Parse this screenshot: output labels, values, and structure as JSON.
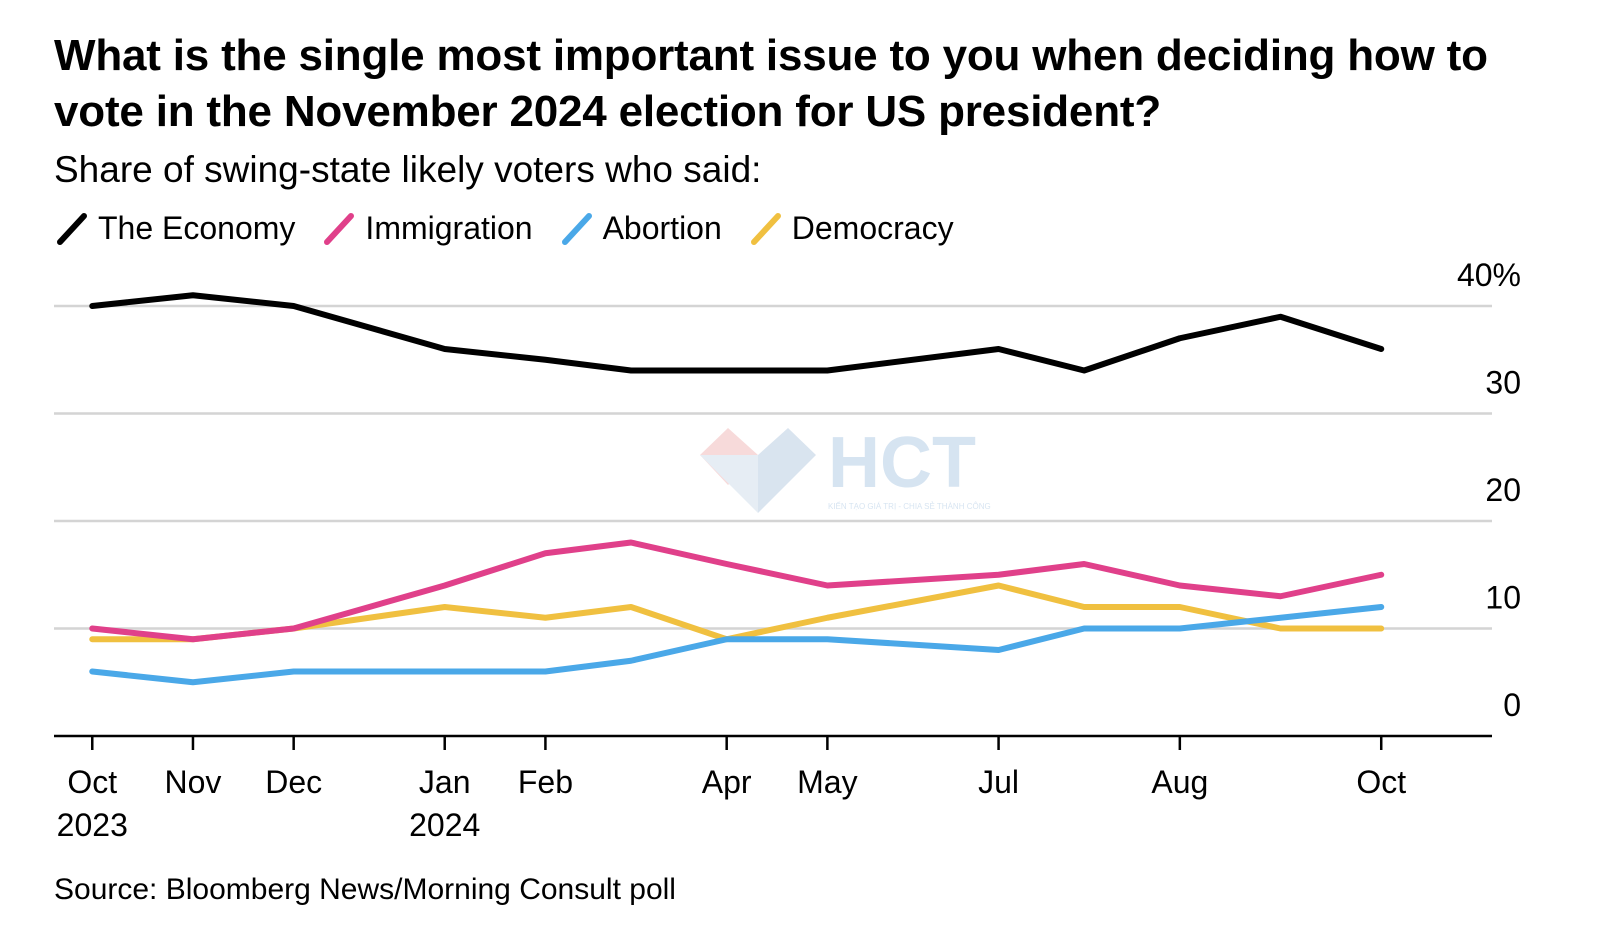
{
  "chart_data": {
    "type": "line",
    "title": "What is the single most important issue to you when deciding how to vote in the November 2024 election for US president?",
    "subtitle": "Share of swing-state likely voters who said:",
    "source": "Source: Bloomberg News/Morning Consult poll",
    "x_index": [
      0,
      1,
      2,
      3.5,
      4.5,
      5.35,
      6.3,
      7.3,
      9,
      9.85,
      10.8,
      11.8,
      12.8
    ],
    "x_ticks": [
      {
        "pos": 0,
        "label": "Oct",
        "sublabel": "2023"
      },
      {
        "pos": 1,
        "label": "Nov",
        "sublabel": ""
      },
      {
        "pos": 2,
        "label": "Dec",
        "sublabel": ""
      },
      {
        "pos": 3.5,
        "label": "Jan",
        "sublabel": "2024"
      },
      {
        "pos": 4.5,
        "label": "Feb",
        "sublabel": ""
      },
      {
        "pos": 6.3,
        "label": "Apr",
        "sublabel": ""
      },
      {
        "pos": 7.3,
        "label": "May",
        "sublabel": ""
      },
      {
        "pos": 9,
        "label": "Jul",
        "sublabel": ""
      },
      {
        "pos": 10.8,
        "label": "Aug",
        "sublabel": ""
      },
      {
        "pos": 12.8,
        "label": "Oct",
        "sublabel": ""
      }
    ],
    "x_range": [
      -0.38,
      13.9
    ],
    "ylim": [
      0,
      40
    ],
    "y_ticks": [
      {
        "value": 0,
        "label": "0"
      },
      {
        "value": 10,
        "label": "10"
      },
      {
        "value": 20,
        "label": "20"
      },
      {
        "value": 30,
        "label": "30"
      },
      {
        "value": 40,
        "label": "40%"
      }
    ],
    "series": [
      {
        "name": "The Economy",
        "color": "#000000",
        "values": [
          40,
          41,
          40,
          36,
          35,
          34,
          34,
          34,
          36,
          34,
          37,
          39,
          36
        ]
      },
      {
        "name": "Immigration",
        "color": "#e0408a",
        "values": [
          10,
          9,
          10,
          14,
          17,
          18,
          16,
          14,
          15,
          16,
          14,
          13,
          15
        ]
      },
      {
        "name": "Abortion",
        "color": "#4aa8e8",
        "values": [
          6,
          5,
          6,
          6,
          6,
          7,
          9,
          9,
          8,
          10,
          10,
          11,
          12
        ]
      },
      {
        "name": "Democracy",
        "color": "#f0c040",
        "values": [
          9,
          9,
          10,
          12,
          11,
          12,
          9,
          11,
          14,
          12,
          12,
          10,
          10
        ]
      }
    ]
  },
  "watermark": {
    "logo_text": "HCT",
    "tagline": "KIẾN TẠO GIÁ TRỊ - CHIA SẺ THÀNH CÔNG"
  }
}
